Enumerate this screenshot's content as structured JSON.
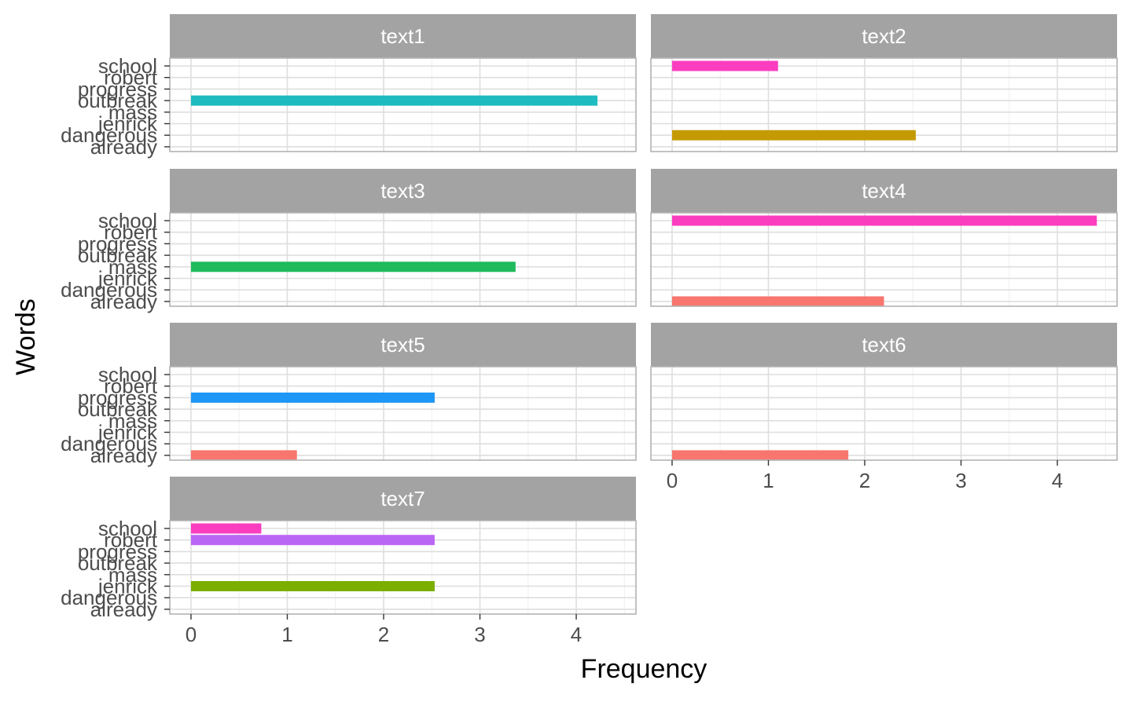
{
  "chart_data": {
    "type": "bar",
    "orientation": "horizontal",
    "layout": "facet-grid 2 columns",
    "xlabel": "Frequency",
    "ylabel": "Words",
    "xlim": [
      -0.22,
      4.62
    ],
    "x_ticks": [
      "0",
      "1",
      "2",
      "3",
      "4"
    ],
    "x_tick_values": [
      0,
      1,
      2,
      3,
      4
    ],
    "categories": [
      "school",
      "robert",
      "progress",
      "outbreak",
      "mass",
      "jenrick",
      "dangerous",
      "already"
    ],
    "grid": true,
    "legend": "none",
    "colors": {
      "already": "#F8766D",
      "dangerous": "#C49A00",
      "jenrick": "#7CAE00",
      "mass": "#1EBA5C",
      "outbreak": "#1EBBC0",
      "progress": "#1E96F5",
      "robert": "#B966F5",
      "school": "#FB3DC0",
      "strip_bg": "#A3A3A3",
      "panel_border": "#B3B3B3",
      "grid_major": "#DEDEDE",
      "grid_minor": "#EFEFEF"
    },
    "panels": [
      {
        "name": "text1",
        "bars": [
          {
            "word": "outbreak",
            "value": 4.22
          }
        ]
      },
      {
        "name": "text2",
        "bars": [
          {
            "word": "school",
            "value": 1.1
          },
          {
            "word": "dangerous",
            "value": 2.53
          }
        ]
      },
      {
        "name": "text3",
        "bars": [
          {
            "word": "mass",
            "value": 3.37
          }
        ]
      },
      {
        "name": "text4",
        "bars": [
          {
            "word": "school",
            "value": 4.41
          },
          {
            "word": "already",
            "value": 2.2
          }
        ]
      },
      {
        "name": "text5",
        "bars": [
          {
            "word": "progress",
            "value": 2.53
          },
          {
            "word": "already",
            "value": 1.1
          }
        ]
      },
      {
        "name": "text6",
        "bars": [
          {
            "word": "already",
            "value": 1.83
          }
        ]
      },
      {
        "name": "text7",
        "bars": [
          {
            "word": "school",
            "value": 0.73
          },
          {
            "word": "robert",
            "value": 2.53
          },
          {
            "word": "jenrick",
            "value": 2.53
          }
        ]
      }
    ]
  }
}
